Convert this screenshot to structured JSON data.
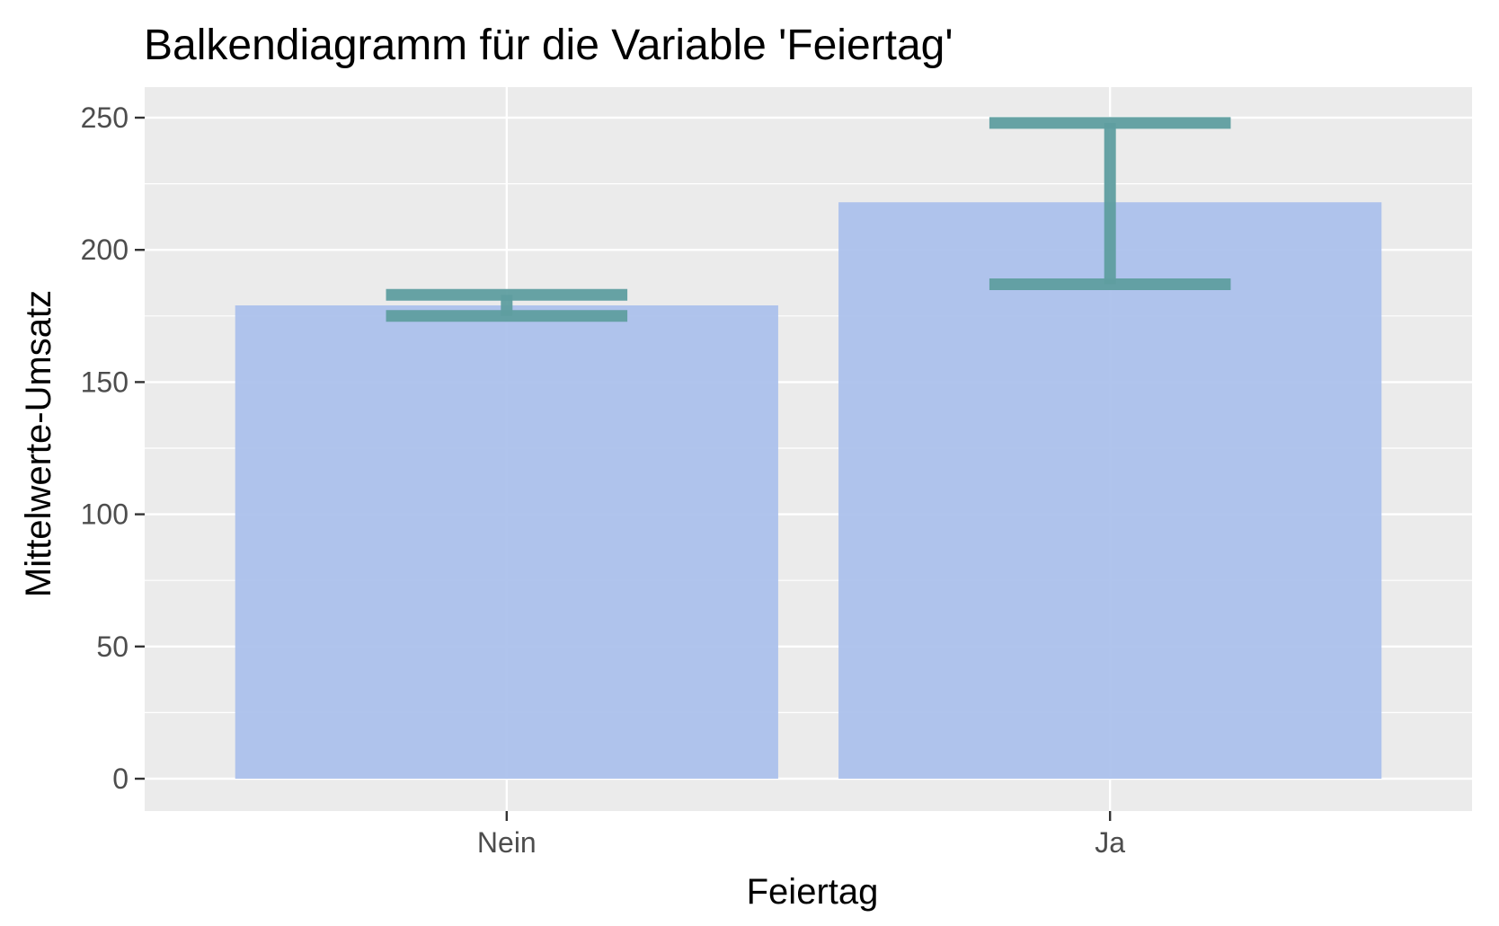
{
  "chart_data": {
    "type": "bar",
    "title": "Balkendiagramm für die Variable 'Feiertag'",
    "xlabel": "Feiertag",
    "ylabel": "Mittelwerte-Umsatz",
    "categories": [
      "Nein",
      "Ja"
    ],
    "values": [
      179,
      218
    ],
    "error_bars": [
      {
        "low": 175,
        "high": 183
      },
      {
        "low": 187,
        "high": 248
      }
    ],
    "ylim": [
      -12.5,
      262.5
    ],
    "yticks": [
      0,
      50,
      100,
      150,
      200,
      250
    ],
    "ytick_labels": [
      "0",
      "50",
      "100",
      "150",
      "200",
      "250"
    ],
    "grid": true,
    "colors": {
      "bar": "#a9bfec",
      "error_bar": "#5f9ea0",
      "panel": "#ebebeb",
      "grid": "#ffffff"
    }
  }
}
